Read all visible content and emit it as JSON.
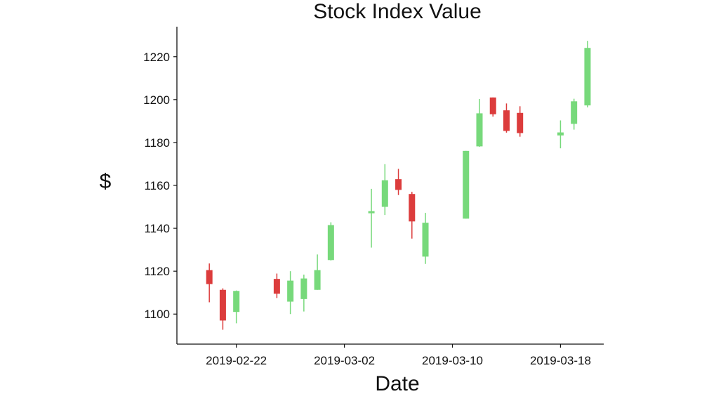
{
  "chart_data": {
    "type": "candlestick",
    "title": "Stock Index Value",
    "xlabel": "Date",
    "ylabel": "$",
    "ylim": [
      1086,
      1234
    ],
    "xlim": [
      "2019-02-18",
      "2019-03-21"
    ],
    "yticks": [
      1100,
      1120,
      1140,
      1160,
      1180,
      1200,
      1220
    ],
    "xticks": [
      "2019-02-22",
      "2019-03-02",
      "2019-03-10",
      "2019-03-18"
    ],
    "grid": false,
    "colors": {
      "up": "#77d97b",
      "down": "#dc3c3c"
    },
    "candles": [
      {
        "date": "2019-02-20",
        "open": 1120.5,
        "high": 1123.6,
        "low": 1105.5,
        "close": 1114.0
      },
      {
        "date": "2019-02-21",
        "open": 1111.3,
        "high": 1112.0,
        "low": 1092.7,
        "close": 1097.0
      },
      {
        "date": "2019-02-22",
        "open": 1101.0,
        "high": 1111.0,
        "low": 1095.7,
        "close": 1110.8
      },
      {
        "date": "2019-02-25",
        "open": 1116.4,
        "high": 1118.9,
        "low": 1107.5,
        "close": 1109.5
      },
      {
        "date": "2019-02-26",
        "open": 1105.8,
        "high": 1120.0,
        "low": 1100.0,
        "close": 1115.6
      },
      {
        "date": "2019-02-27",
        "open": 1107.0,
        "high": 1118.4,
        "low": 1101.2,
        "close": 1116.6
      },
      {
        "date": "2019-02-28",
        "open": 1111.3,
        "high": 1127.8,
        "low": 1111.3,
        "close": 1120.5
      },
      {
        "date": "2019-03-01",
        "open": 1125.2,
        "high": 1142.8,
        "low": 1125.0,
        "close": 1141.5
      },
      {
        "date": "2019-03-04",
        "open": 1147.0,
        "high": 1158.4,
        "low": 1131.0,
        "close": 1148.0
      },
      {
        "date": "2019-03-05",
        "open": 1150.0,
        "high": 1169.9,
        "low": 1146.2,
        "close": 1162.4
      },
      {
        "date": "2019-03-06",
        "open": 1162.9,
        "high": 1167.7,
        "low": 1155.5,
        "close": 1157.9
      },
      {
        "date": "2019-03-07",
        "open": 1156.0,
        "high": 1157.0,
        "low": 1135.2,
        "close": 1143.2
      },
      {
        "date": "2019-03-08",
        "open": 1126.8,
        "high": 1147.2,
        "low": 1123.4,
        "close": 1142.6
      },
      {
        "date": "2019-03-11",
        "open": 1144.5,
        "high": 1176.1,
        "low": 1144.5,
        "close": 1176.1
      },
      {
        "date": "2019-03-12",
        "open": 1178.2,
        "high": 1200.3,
        "low": 1178.0,
        "close": 1193.6
      },
      {
        "date": "2019-03-13",
        "open": 1201.0,
        "high": 1201.0,
        "low": 1192.1,
        "close": 1193.2
      },
      {
        "date": "2019-03-14",
        "open": 1195.0,
        "high": 1198.2,
        "low": 1184.6,
        "close": 1185.4
      },
      {
        "date": "2019-03-15",
        "open": 1193.8,
        "high": 1196.9,
        "low": 1182.7,
        "close": 1184.4
      },
      {
        "date": "2019-03-18",
        "open": 1183.3,
        "high": 1190.3,
        "low": 1177.3,
        "close": 1184.7
      },
      {
        "date": "2019-03-19",
        "open": 1188.7,
        "high": 1200.4,
        "low": 1186.0,
        "close": 1199.2
      },
      {
        "date": "2019-03-20",
        "open": 1197.3,
        "high": 1227.4,
        "low": 1196.4,
        "close": 1224.1
      }
    ]
  }
}
